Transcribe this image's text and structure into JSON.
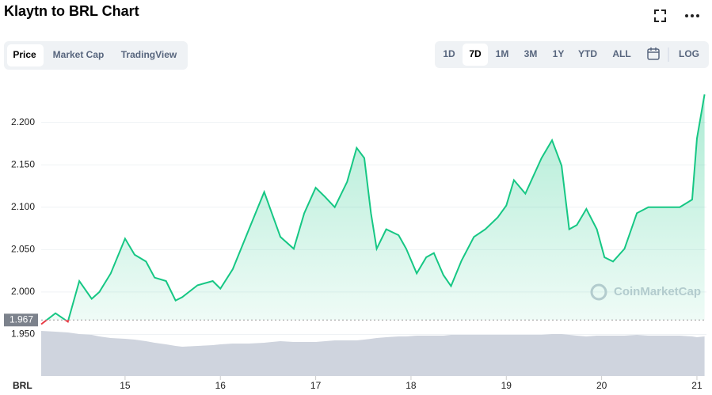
{
  "chart_data": {
    "type": "line",
    "title": "Klaytn to BRL Chart",
    "x": [
      14.12,
      14.27,
      14.4,
      14.52,
      14.65,
      14.73,
      14.85,
      15.0,
      15.1,
      15.22,
      15.31,
      15.43,
      15.53,
      15.6,
      15.76,
      15.92,
      16.0,
      16.13,
      16.3,
      16.46,
      16.54,
      16.63,
      16.77,
      16.88,
      17.0,
      17.1,
      17.2,
      17.33,
      17.43,
      17.51,
      17.58,
      17.64,
      17.74,
      17.87,
      17.95,
      18.06,
      18.16,
      18.24,
      18.34,
      18.42,
      18.53,
      18.66,
      18.78,
      18.91,
      19.0,
      19.08,
      19.2,
      19.37,
      19.48,
      19.58,
      19.66,
      19.74,
      19.84,
      19.95,
      20.03,
      20.12,
      20.24,
      20.37,
      20.49,
      20.66,
      20.82,
      20.95,
      21.0,
      21.08
    ],
    "values": [
      1.962,
      1.975,
      1.965,
      2.013,
      1.992,
      2.0,
      2.022,
      2.063,
      2.044,
      2.036,
      2.017,
      2.013,
      1.99,
      1.994,
      2.008,
      2.013,
      2.004,
      2.027,
      2.074,
      2.118,
      2.093,
      2.065,
      2.051,
      2.093,
      2.123,
      2.112,
      2.1,
      2.13,
      2.17,
      2.158,
      2.093,
      2.051,
      2.074,
      2.067,
      2.051,
      2.022,
      2.041,
      2.046,
      2.02,
      2.007,
      2.037,
      2.065,
      2.074,
      2.088,
      2.102,
      2.132,
      2.116,
      2.158,
      2.179,
      2.149,
      2.074,
      2.079,
      2.098,
      2.074,
      2.041,
      2.036,
      2.051,
      2.093,
      2.1,
      2.1,
      2.1,
      2.109,
      2.181,
      2.233
    ],
    "volume": [
      57,
      56,
      55,
      53,
      52,
      50,
      48,
      47,
      46,
      44,
      42,
      40,
      38,
      37,
      38,
      39,
      40,
      41,
      41,
      42,
      43,
      44,
      43,
      43,
      43,
      44,
      45,
      45,
      45,
      46,
      47,
      48,
      49,
      50,
      50,
      51,
      51,
      51,
      51,
      52,
      52,
      52,
      52,
      52,
      52,
      52,
      52,
      52,
      53,
      53,
      52,
      51,
      50,
      51,
      51,
      51,
      51,
      52,
      51,
      51,
      51,
      50,
      49,
      50
    ],
    "color": "#16c784",
    "below_color": "#ea3943",
    "current_value": 1.967,
    "current_label": "1.967",
    "xlim": [
      14.12,
      21.1
    ],
    "xticks": [
      15,
      16,
      17,
      18,
      19,
      20,
      21
    ],
    "ylim": [
      1.901,
      2.251
    ],
    "yticks": [
      {
        "value": 1.95,
        "label": "1.950"
      },
      {
        "value": 2.0,
        "label": "2.000"
      },
      {
        "value": 2.05,
        "label": "2.050"
      },
      {
        "value": 2.1,
        "label": "2.100"
      },
      {
        "value": 2.15,
        "label": "2.150"
      },
      {
        "value": 2.2,
        "label": "2.200"
      }
    ],
    "grid": true,
    "currency": "BRL",
    "watermark": "CoinMarketCap"
  },
  "ui": {
    "tabs": [
      "Price",
      "Market Cap",
      "TradingView"
    ],
    "ranges": [
      "1D",
      "7D",
      "1M",
      "3M",
      "1Y",
      "YTD",
      "ALL"
    ],
    "log": "LOG"
  }
}
